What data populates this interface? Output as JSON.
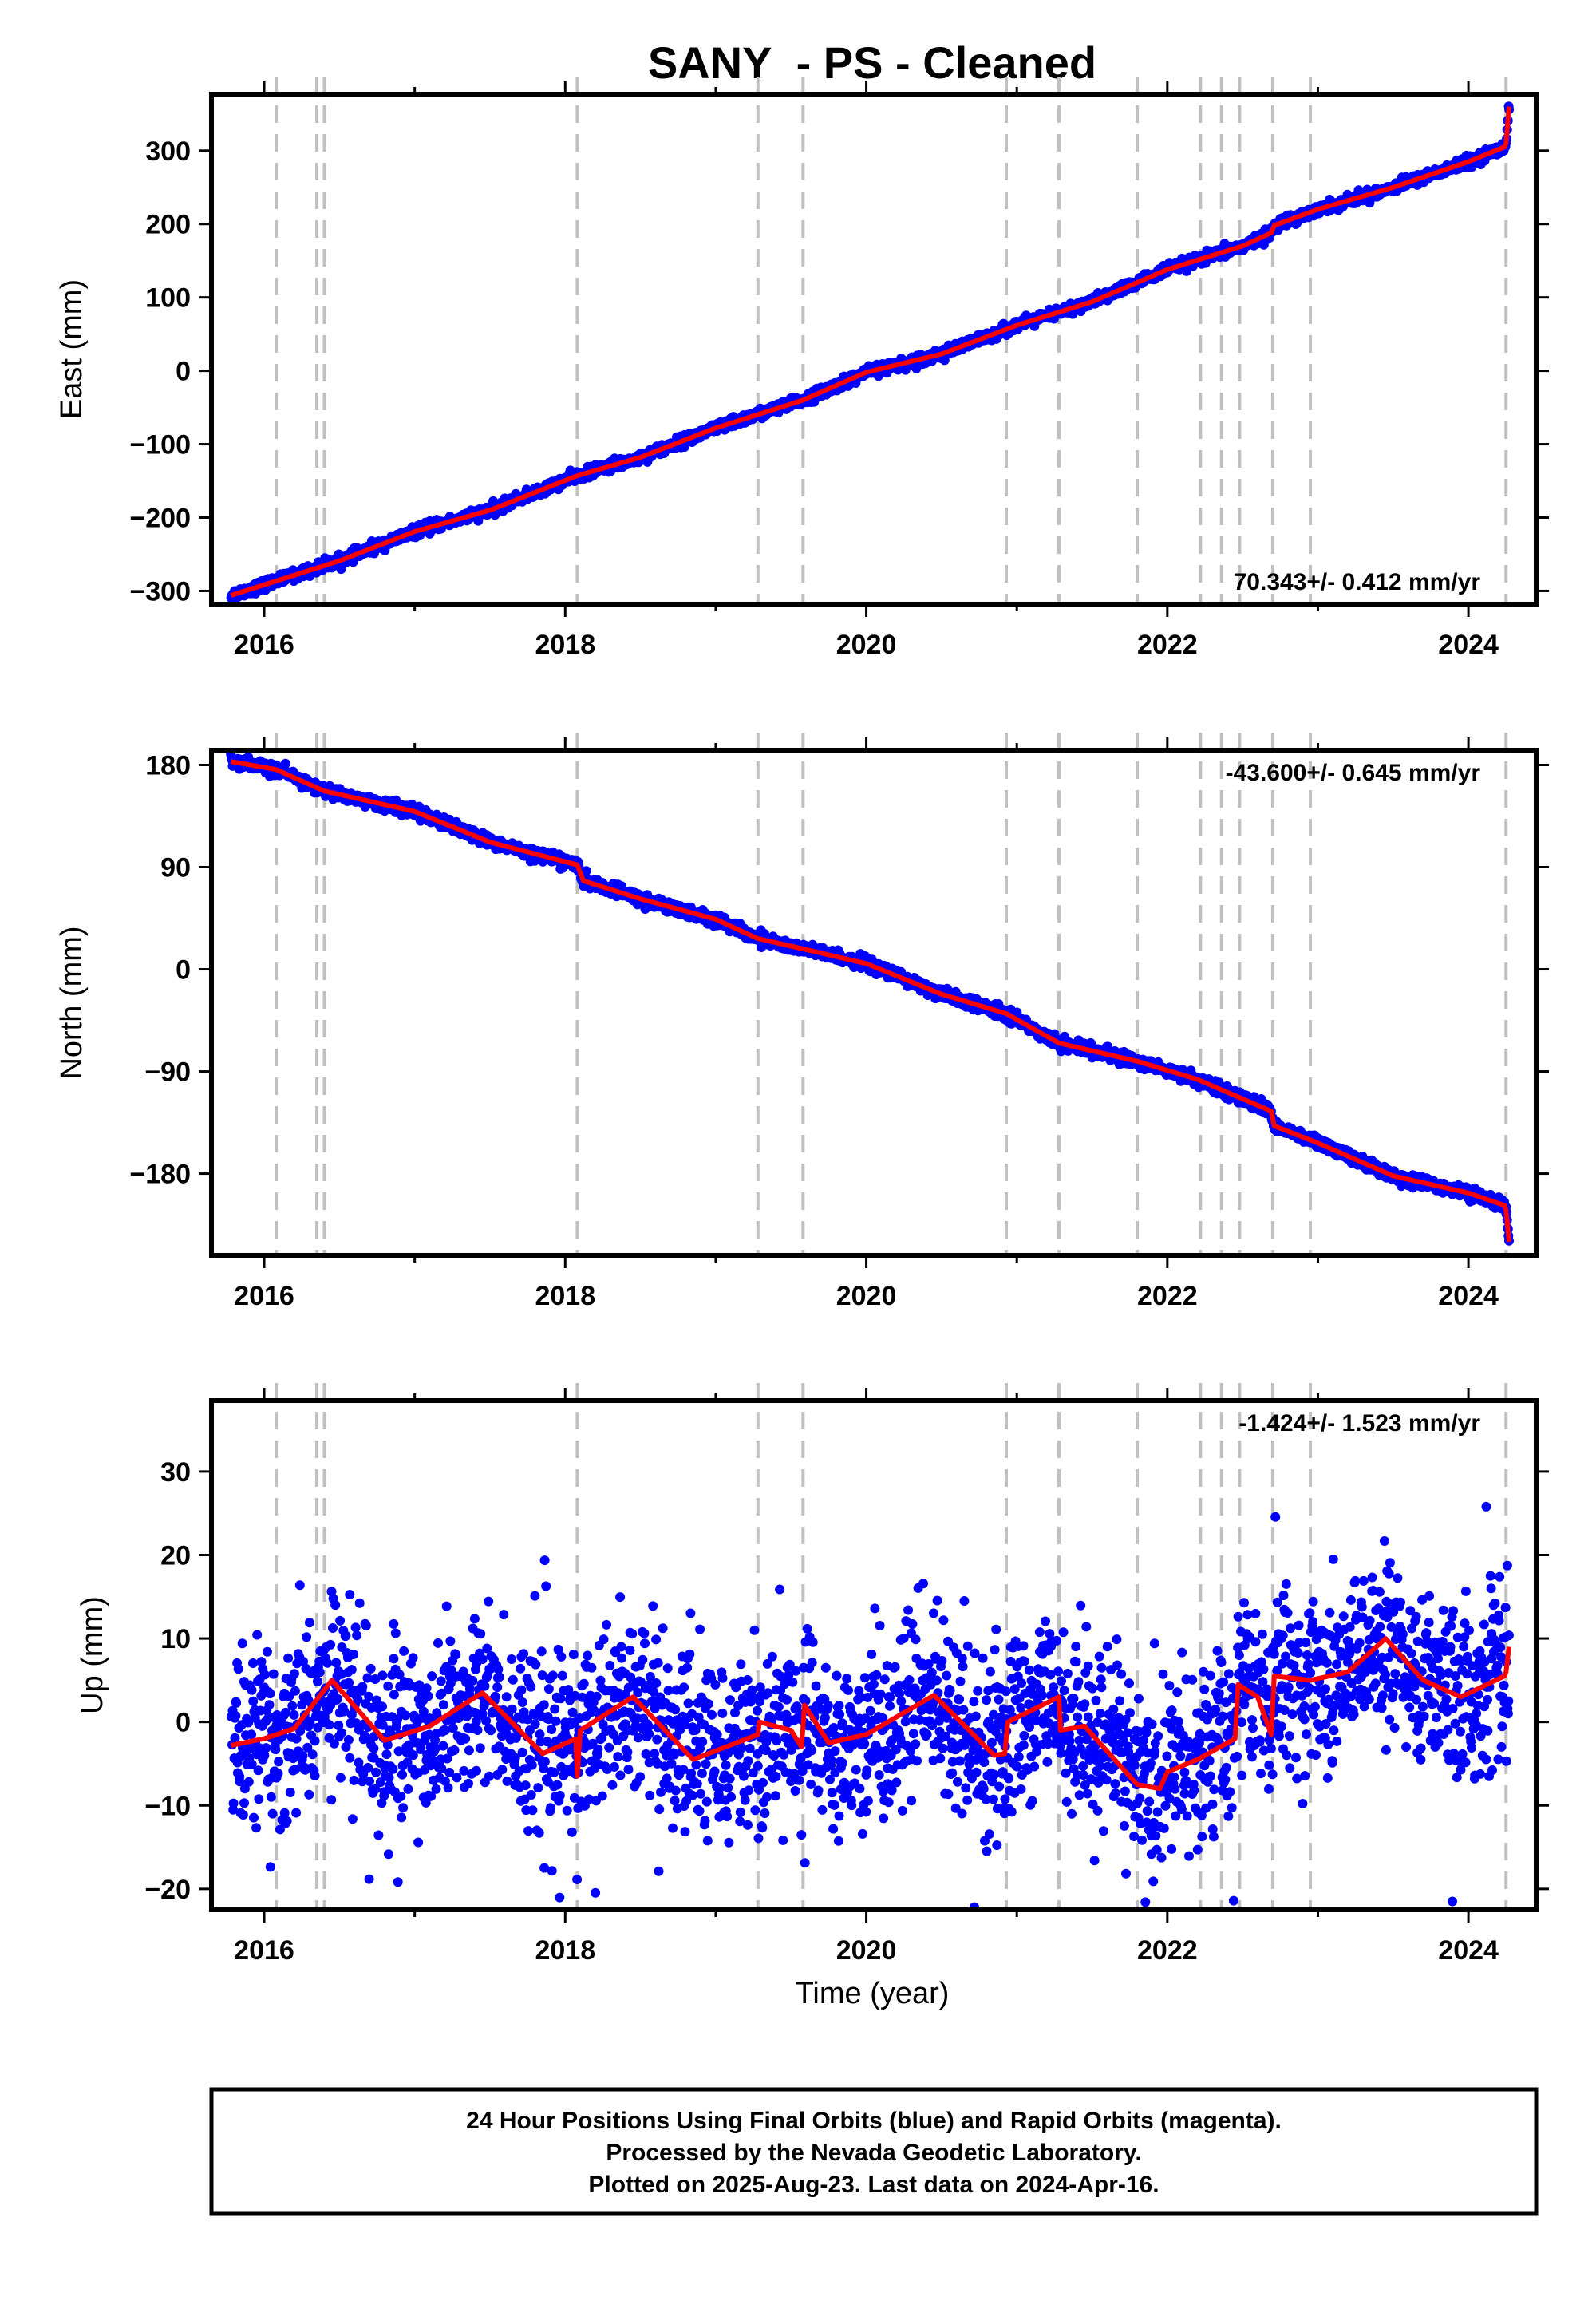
{
  "figure": {
    "title": "SANY  - PS - Cleaned",
    "xlabel": "Time (year)",
    "footer": [
      "24 Hour Positions Using Final Orbits (blue) and Rapid Orbits (magenta).",
      "Processed by the Nevada Geodetic Laboratory.",
      "Plotted on 2025-Aug-23. Last data on 2024-Apr-16."
    ]
  },
  "chart_data": [
    {
      "type": "scatter",
      "ylabel": "East (mm)",
      "rate_label": "70.343+/- 0.412 mm/yr",
      "rate_position": "bottom-right",
      "xlim": [
        2015.65,
        2024.45
      ],
      "ylim": [
        -318,
        377
      ],
      "xticks": [
        2016,
        2018,
        2020,
        2022,
        2024
      ],
      "yticks": [
        -300,
        -200,
        -100,
        0,
        100,
        200,
        300
      ],
      "ytick_labels": [
        "−300",
        "−200",
        "−100",
        "0",
        "100",
        "200",
        "300"
      ],
      "event_lines": [
        2016.08,
        2016.35,
        2016.4,
        2018.08,
        2019.28,
        2019.58,
        2020.93,
        2021.28,
        2021.8,
        2022.22,
        2022.36,
        2022.48,
        2022.7,
        2022.95,
        2024.25
      ],
      "trend": [
        [
          2015.78,
          -306
        ],
        [
          2016.5,
          -259
        ],
        [
          2017.0,
          -219
        ],
        [
          2017.5,
          -190
        ],
        [
          2018.08,
          -143
        ],
        [
          2018.5,
          -118
        ],
        [
          2019.0,
          -78
        ],
        [
          2019.58,
          -40
        ],
        [
          2020.0,
          -2
        ],
        [
          2020.5,
          23
        ],
        [
          2021.0,
          62
        ],
        [
          2021.5,
          94
        ],
        [
          2022.0,
          138
        ],
        [
          2022.5,
          170
        ],
        [
          2022.69,
          188
        ],
        [
          2022.71,
          198
        ],
        [
          2023.0,
          220
        ],
        [
          2023.5,
          250
        ],
        [
          2024.0,
          285
        ],
        [
          2024.24,
          305
        ],
        [
          2024.25,
          310
        ],
        [
          2024.27,
          360
        ]
      ],
      "scatter_from_trend": {
        "count": 2700,
        "spread": 3.5,
        "x_start": 2015.78,
        "x_end": 2024.27
      },
      "series_colors": {
        "points": "#0000ff",
        "trend": "#ff0000"
      }
    },
    {
      "type": "scatter",
      "ylabel": "North (mm)",
      "rate_label": "-43.600+/- 0.645 mm/yr",
      "rate_position": "top-right",
      "xlim": [
        2015.65,
        2024.45
      ],
      "ylim": [
        -252,
        193
      ],
      "xticks": [
        2016,
        2018,
        2020,
        2022,
        2024
      ],
      "yticks": [
        -180,
        -90,
        0,
        90,
        180
      ],
      "ytick_labels": [
        "−180",
        "−90",
        "0",
        "90",
        "180"
      ],
      "event_lines": [
        2016.08,
        2016.35,
        2016.4,
        2018.08,
        2019.28,
        2019.58,
        2020.93,
        2021.28,
        2021.8,
        2022.22,
        2022.36,
        2022.48,
        2022.7,
        2022.95,
        2024.25
      ],
      "trend": [
        [
          2015.78,
          183
        ],
        [
          2016.08,
          176
        ],
        [
          2016.4,
          157
        ],
        [
          2017.0,
          139
        ],
        [
          2017.5,
          112
        ],
        [
          2018.08,
          92
        ],
        [
          2018.12,
          78
        ],
        [
          2018.5,
          62
        ],
        [
          2019.0,
          44
        ],
        [
          2019.28,
          27
        ],
        [
          2019.58,
          18
        ],
        [
          2020.0,
          5
        ],
        [
          2020.5,
          -22
        ],
        [
          2020.93,
          -39
        ],
        [
          2021.28,
          -65
        ],
        [
          2021.8,
          -81
        ],
        [
          2022.2,
          -97
        ],
        [
          2022.69,
          -125
        ],
        [
          2022.71,
          -138
        ],
        [
          2023.0,
          -153
        ],
        [
          2023.5,
          -182
        ],
        [
          2024.0,
          -197
        ],
        [
          2024.24,
          -208
        ],
        [
          2024.25,
          -212
        ],
        [
          2024.27,
          -240
        ]
      ],
      "scatter_from_trend": {
        "count": 2700,
        "spread": 2.5,
        "x_start": 2015.78,
        "x_end": 2024.27
      },
      "series_colors": {
        "points": "#0000ff",
        "trend": "#ff0000"
      }
    },
    {
      "type": "scatter",
      "ylabel": "Up (mm)",
      "rate_label": "-1.424+/- 1.523 mm/yr",
      "rate_position": "top-right",
      "xlim": [
        2015.65,
        2024.45
      ],
      "ylim": [
        -22.5,
        38.5
      ],
      "xticks": [
        2016,
        2018,
        2020,
        2022,
        2024
      ],
      "yticks": [
        -20,
        -10,
        0,
        10,
        20,
        30
      ],
      "ytick_labels": [
        "−20",
        "−10",
        "0",
        "10",
        "20",
        "30"
      ],
      "event_lines": [
        2016.08,
        2016.35,
        2016.4,
        2018.08,
        2019.28,
        2019.58,
        2020.93,
        2021.28,
        2021.8,
        2022.22,
        2022.36,
        2022.48,
        2022.7,
        2022.95,
        2024.25
      ],
      "trend": [
        [
          2015.78,
          -2.8
        ],
        [
          2016.0,
          -2.0
        ],
        [
          2016.2,
          -0.8
        ],
        [
          2016.45,
          5.0
        ],
        [
          2016.8,
          -2.2
        ],
        [
          2017.1,
          -0.5
        ],
        [
          2017.45,
          3.5
        ],
        [
          2017.85,
          -3.8
        ],
        [
          2018.07,
          -2.0
        ],
        [
          2018.08,
          -6.5
        ],
        [
          2018.1,
          -1.0
        ],
        [
          2018.45,
          3.0
        ],
        [
          2018.85,
          -4.5
        ],
        [
          2019.28,
          -1.5
        ],
        [
          2019.29,
          0.0
        ],
        [
          2019.5,
          -1.0
        ],
        [
          2019.57,
          -3.0
        ],
        [
          2019.59,
          2.0
        ],
        [
          2019.75,
          -2.5
        ],
        [
          2020.0,
          -1.5
        ],
        [
          2020.45,
          3.2
        ],
        [
          2020.85,
          -4.0
        ],
        [
          2020.92,
          -3.8
        ],
        [
          2020.94,
          0.0
        ],
        [
          2021.28,
          3.0
        ],
        [
          2021.29,
          -1.0
        ],
        [
          2021.45,
          -0.5
        ],
        [
          2021.8,
          -7.5
        ],
        [
          2021.95,
          -8.0
        ],
        [
          2022.0,
          -6.0
        ],
        [
          2022.2,
          -4.5
        ],
        [
          2022.45,
          -2.0
        ],
        [
          2022.47,
          4.5
        ],
        [
          2022.6,
          3.0
        ],
        [
          2022.69,
          -1.5
        ],
        [
          2022.71,
          5.5
        ],
        [
          2022.95,
          5.0
        ],
        [
          2023.2,
          6.0
        ],
        [
          2023.45,
          10.0
        ],
        [
          2023.7,
          5.0
        ],
        [
          2023.95,
          3.0
        ],
        [
          2024.24,
          5.5
        ],
        [
          2024.25,
          6.0
        ],
        [
          2024.27,
          9.0
        ]
      ],
      "scatter_from_trend": {
        "count": 2600,
        "spread": 5.2,
        "x_start": 2015.78,
        "x_end": 2024.27
      },
      "series_colors": {
        "points": "#0000ff",
        "trend": "#ff0000"
      }
    }
  ]
}
